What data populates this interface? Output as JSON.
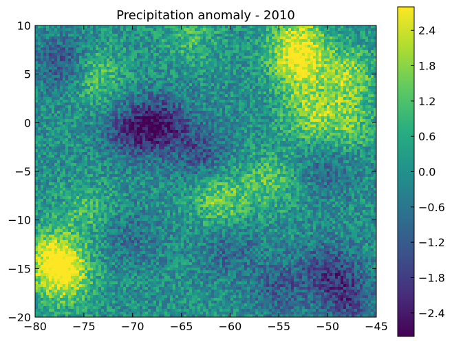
{
  "chart_data": {
    "type": "heatmap",
    "title": "Precipitation anomaly - 2010",
    "xlabel": "",
    "ylabel": "",
    "xlim": [
      -80,
      -45
    ],
    "ylim": [
      -20,
      10
    ],
    "x_ticks": [
      -80,
      -75,
      -70,
      -65,
      -60,
      -55,
      -50,
      -45
    ],
    "y_ticks": [
      -20,
      -15,
      -10,
      -5,
      0,
      5,
      10
    ],
    "x_tick_labels": [
      "−80",
      "−75",
      "−70",
      "−65",
      "−60",
      "−55",
      "−50",
      "−45"
    ],
    "y_tick_labels": [
      "−20",
      "−15",
      "−10",
      "−5",
      "0",
      "5",
      "10"
    ],
    "colormap": "viridis",
    "color_range": [
      -2.8,
      2.8
    ],
    "colorbar_ticks": [
      -2.4,
      -1.8,
      -1.2,
      -0.6,
      0.0,
      0.6,
      1.2,
      1.8,
      2.4
    ],
    "colorbar_tick_labels": [
      "−2.4",
      "−1.8",
      "−1.2",
      "−0.6",
      "0.0",
      "0.6",
      "1.2",
      "1.8",
      "2.4"
    ],
    "grid": false,
    "anomaly_regions": [
      {
        "lon": -53,
        "lat": 6,
        "value": 2.2
      },
      {
        "lon": -48,
        "lat": 5,
        "value": 1.8
      },
      {
        "lon": -52,
        "lat": 1,
        "value": 1.6
      },
      {
        "lon": -48,
        "lat": 0,
        "value": 1.4
      },
      {
        "lon": -53,
        "lat": 9,
        "value": 1.8
      },
      {
        "lon": -78,
        "lat": -14,
        "value": 2.4
      },
      {
        "lon": -77,
        "lat": -16,
        "value": 2.0
      },
      {
        "lon": -61,
        "lat": -8,
        "value": 1.6
      },
      {
        "lon": -56,
        "lat": -6,
        "value": 1.2
      },
      {
        "lon": -74,
        "lat": 5,
        "value": 1.4
      },
      {
        "lon": -64,
        "lat": 9,
        "value": 1.0
      },
      {
        "lon": -75,
        "lat": -9,
        "value": 1.0
      },
      {
        "lon": -67,
        "lat": 0,
        "value": -2.0
      },
      {
        "lon": -70,
        "lat": -1,
        "value": -1.8
      },
      {
        "lon": -63,
        "lat": -3,
        "value": -1.4
      },
      {
        "lon": -77,
        "lat": 6,
        "value": -1.6
      },
      {
        "lon": -50,
        "lat": -15,
        "value": -1.4
      },
      {
        "lon": -55,
        "lat": -17,
        "value": -1.2
      },
      {
        "lon": -48,
        "lat": -18,
        "value": -1.6
      },
      {
        "lon": -60,
        "lat": -13,
        "value": -1.0
      },
      {
        "lon": -50,
        "lat": -5,
        "value": -0.8
      },
      {
        "lon": -70,
        "lat": -12,
        "value": -0.8
      }
    ]
  }
}
